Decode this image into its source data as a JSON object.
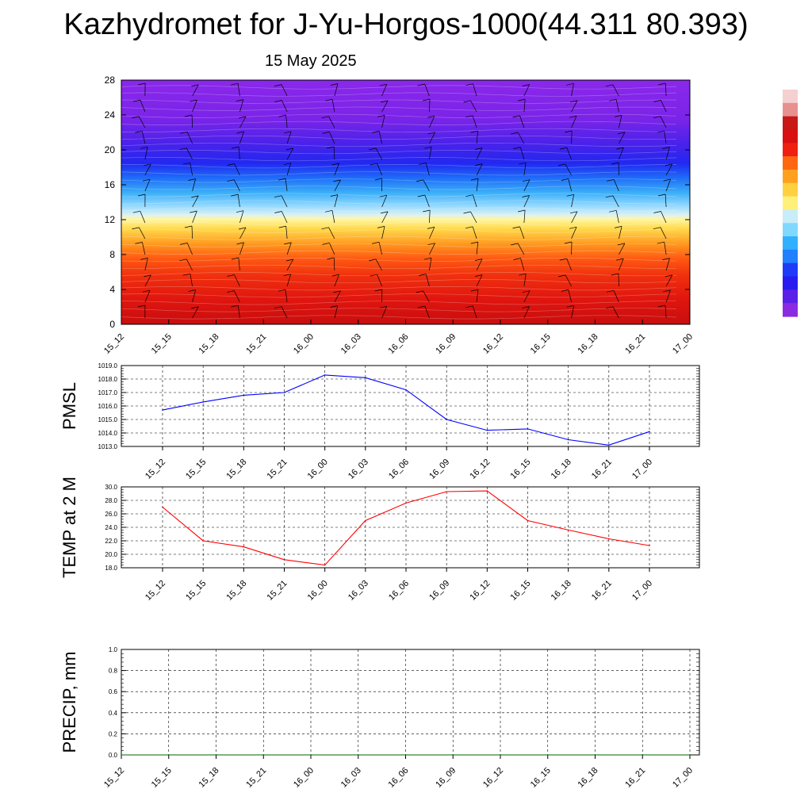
{
  "title": "Kazhydromet for J-Yu-Horgos-1000(44.311 80.393)",
  "subtitle": "15 May 2025",
  "chart_data": [
    {
      "type": "heatmap",
      "name": "vertical-profile",
      "yticks": [
        "0",
        "4",
        "8",
        "12",
        "16",
        "20",
        "24",
        "28"
      ],
      "ylim": [
        0,
        28
      ],
      "xticks": [
        "15_12",
        "15_15",
        "15_18",
        "15_21",
        "16_00",
        "16_03",
        "16_06",
        "16_09",
        "16_12",
        "16_15",
        "16_18",
        "16_21",
        "17_00"
      ],
      "colorbar": [
        "#8a2be2",
        "#5a20e8",
        "#2a1cf0",
        "#1e3cf8",
        "#2080ff",
        "#30b0ff",
        "#80d8ff",
        "#c8ecf8",
        "#fff07a",
        "#ffd040",
        "#ffa020",
        "#ff6810",
        "#f02010",
        "#d81010",
        "#c81818",
        "#e89090",
        "#f4d0d0"
      ]
    },
    {
      "type": "line",
      "name": "pmsl",
      "ylabel": "PMSL",
      "yticks": [
        "1013.0",
        "1014.0",
        "1015.0",
        "1016.0",
        "1017.0",
        "1018.0",
        "1019.0"
      ],
      "ylim": [
        1013,
        1019
      ],
      "xticks": [
        "15_12",
        "15_15",
        "15_18",
        "15_21",
        "16_00",
        "16_03",
        "16_06",
        "16_09",
        "16_12",
        "16_15",
        "16_18",
        "16_21",
        "17_00"
      ],
      "series": [
        {
          "color": "#0000ff",
          "values": [
            1015.7,
            1016.3,
            1016.8,
            1017.0,
            1018.3,
            1018.1,
            1017.2,
            1015.0,
            1014.2,
            1014.3,
            1013.5,
            1013.1,
            1014.1
          ]
        }
      ]
    },
    {
      "type": "line",
      "name": "temp",
      "ylabel": "TEMP at 2 M",
      "yticks": [
        "18.0",
        "20.0",
        "22.0",
        "24.0",
        "26.0",
        "28.0",
        "30.0"
      ],
      "ylim": [
        18,
        30
      ],
      "xticks": [
        "15_12",
        "15_15",
        "15_18",
        "15_21",
        "16_00",
        "16_03",
        "16_06",
        "16_09",
        "16_12",
        "16_15",
        "16_18",
        "16_21",
        "17_00"
      ],
      "series": [
        {
          "color": "#ff0000",
          "values": [
            27.0,
            22.0,
            21.1,
            19.2,
            18.4,
            25.0,
            27.6,
            29.3,
            29.4,
            25.0,
            23.6,
            22.3,
            21.3
          ]
        }
      ]
    },
    {
      "type": "line",
      "name": "precip",
      "ylabel": "PRECIP, mm",
      "yticks": [
        "0.0",
        "0.2",
        "0.4",
        "0.6",
        "0.8",
        "1.0"
      ],
      "ylim": [
        0,
        1
      ],
      "xticks": [
        "15_12",
        "15_15",
        "15_18",
        "15_21",
        "16_00",
        "16_03",
        "16_06",
        "16_09",
        "16_12",
        "16_15",
        "16_18",
        "16_21",
        "17_00"
      ],
      "series": [
        {
          "color": "#006400",
          "values": [
            0,
            0,
            0,
            0,
            0,
            0,
            0,
            0,
            0,
            0,
            0,
            0,
            0
          ]
        }
      ]
    }
  ]
}
